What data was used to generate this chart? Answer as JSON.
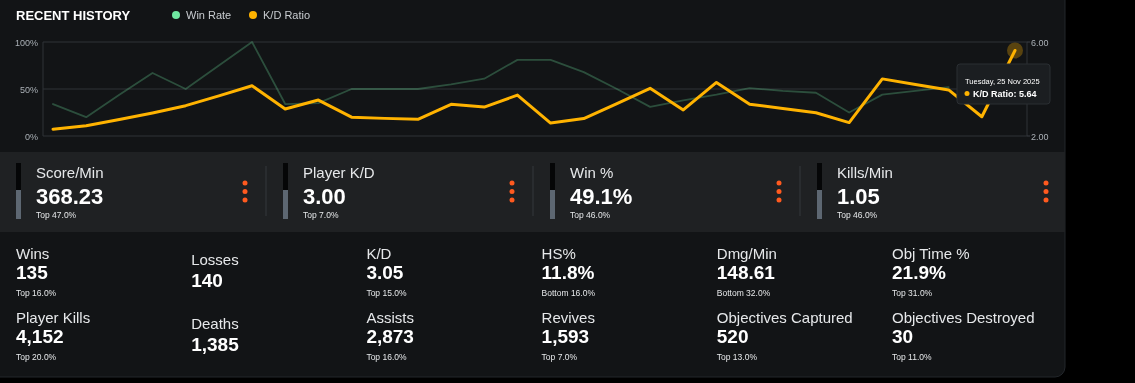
{
  "chart_data": [
    {
      "type": "line",
      "title": "RECENT HISTORY",
      "categories": [
        null,
        null,
        null,
        null,
        null,
        null,
        null,
        null,
        null,
        null,
        null,
        null,
        null,
        null,
        null,
        null,
        null,
        null,
        null,
        null,
        null,
        null,
        null,
        null,
        null,
        null,
        null,
        null,
        null,
        null
      ],
      "series": [
        {
          "name": "Win Rate",
          "color": "#6ee7a0",
          "values": [
            34,
            20,
            44,
            67,
            50,
            75,
            100,
            34,
            35,
            50,
            50,
            50,
            55,
            61,
            81,
            81,
            68,
            50,
            31,
            38,
            44,
            51,
            48,
            46,
            25,
            44,
            48,
            52,
            null,
            null
          ]
        },
        {
          "name": "K/D Ratio",
          "color": "#ffb300",
          "axis": "y2",
          "values": [
            2.29,
            2.44,
            2.7,
            2.98,
            3.29,
            3.71,
            4.14,
            3.15,
            3.53,
            2.8,
            2.75,
            2.71,
            3.35,
            3.23,
            3.74,
            2.55,
            2.74,
            3.38,
            4.03,
            3.11,
            4.28,
            3.35,
            3.17,
            2.99,
            2.57,
            4.43,
            4.19,
            3.96,
            2.82,
            5.64
          ]
        }
      ],
      "ylim": [
        0,
        100
      ],
      "yticks": [
        {
          "value": 0,
          "label": "0%"
        },
        {
          "value": 50,
          "label": "50%"
        },
        {
          "value": 100,
          "label": "100%"
        }
      ],
      "y2lim": [
        2,
        6
      ],
      "y2ticks": [
        {
          "value": 2,
          "label": "2.00"
        },
        {
          "value": 4,
          "label": null
        },
        {
          "value": 6,
          "label": "6.00"
        }
      ],
      "grid": "y",
      "legend": "top",
      "annotations": [
        "Tuesday, 25 Nov 2025",
        "K/D Ratio: 5.64"
      ]
    },
    {
      "type": "other",
      "categories": [
        "Score/Min",
        "Player K/D",
        "Win %",
        "Kills/Min"
      ],
      "value_labels": [
        "368.23",
        "3.00",
        "49.1%",
        "1.05"
      ],
      "annotations": [
        {
          "text": "Top 47.0%",
          "x": "Score/Min"
        },
        {
          "text": "Top 7.0%",
          "x": "Player K/D"
        },
        {
          "text": "Top 46.0%",
          "x": "Win %"
        },
        {
          "text": "Top 46.0%",
          "x": "Kills/Min"
        }
      ]
    },
    {
      "type": "other",
      "categories": [
        "Wins",
        "Losses",
        "K/D",
        "HS%",
        "Dmg/Min",
        "Obj Time %",
        "Player Kills",
        "Deaths",
        "Assists",
        "Revives",
        "Objectives Captured",
        "Objectives Destroyed"
      ],
      "value_labels": [
        "135",
        "140",
        "3.05",
        "11.8%",
        "148.61",
        "21.9%",
        "4,152",
        "1,385",
        "2,873",
        "1,593",
        "520",
        "30"
      ],
      "annotations": [
        {
          "text": "Top 16.0%",
          "x": "Wins"
        },
        {
          "text": "Top 15.0%",
          "x": "K/D"
        },
        {
          "text": "Bottom 16.0%",
          "x": "HS%"
        },
        {
          "text": "Bottom 32.0%",
          "x": "Dmg/Min"
        },
        {
          "text": "Top 31.0%",
          "x": "Obj Time %"
        },
        {
          "text": "Top 20.0%",
          "x": "Player Kills"
        },
        {
          "text": "Top 16.0%",
          "x": "Assists"
        },
        {
          "text": "Top 7.0%",
          "x": "Revives"
        },
        {
          "text": "Top 13.0%",
          "x": "Objectives Captured"
        },
        {
          "text": "Top 11.0%",
          "x": "Objectives Destroyed"
        }
      ]
    }
  ]
}
